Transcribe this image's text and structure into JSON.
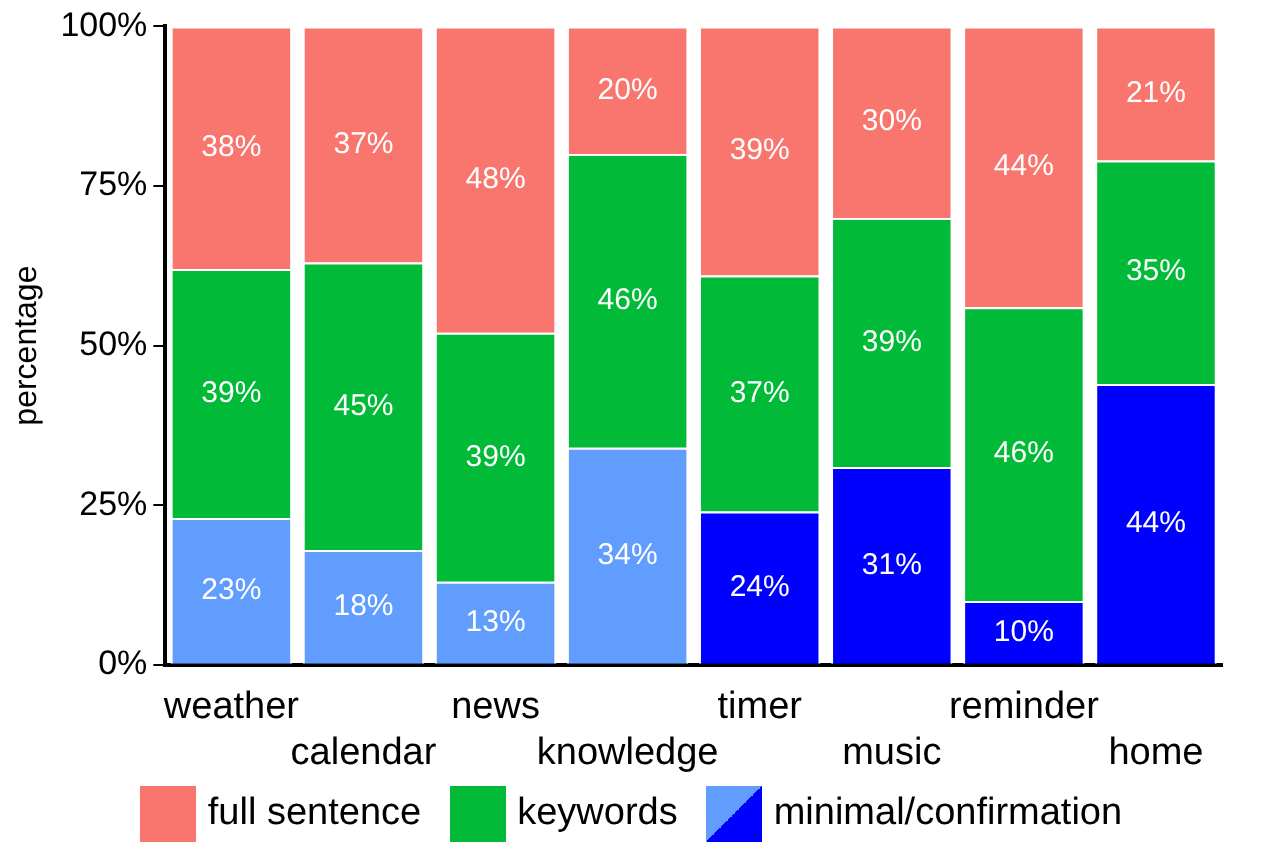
{
  "chart_data": {
    "type": "bar",
    "stacked": true,
    "ylabel": "percentage",
    "categories": [
      "weather",
      "calendar",
      "news",
      "knowledge",
      "timer",
      "music",
      "reminder",
      "home"
    ],
    "series": [
      {
        "name": "minimal/confirmation",
        "colors": [
          "#619cff",
          "#619cff",
          "#619cff",
          "#619cff",
          "#0000ff",
          "#0000ff",
          "#0000ff",
          "#0000ff"
        ],
        "values": [
          23,
          18,
          13,
          34,
          24,
          31,
          10,
          44
        ],
        "value_labels": [
          "23%",
          "18%",
          "13%",
          "34%",
          "24%",
          "31%",
          "10%",
          "44%"
        ]
      },
      {
        "name": "keywords",
        "color": "#00ba38",
        "values": [
          39,
          45,
          39,
          46,
          37,
          39,
          46,
          35
        ],
        "value_labels": [
          "39%",
          "45%",
          "39%",
          "46%",
          "37%",
          "39%",
          "46%",
          "35%"
        ]
      },
      {
        "name": "full sentence",
        "color": "#f8766d",
        "values": [
          38,
          37,
          48,
          20,
          39,
          30,
          44,
          21
        ],
        "value_labels": [
          "38%",
          "37%",
          "48%",
          "20%",
          "39%",
          "30%",
          "44%",
          "21%"
        ]
      }
    ],
    "ylim": [
      0,
      100
    ],
    "yticks": [
      {
        "value": 0,
        "label": "0%"
      },
      {
        "value": 25,
        "label": "25%"
      },
      {
        "value": 50,
        "label": "50%"
      },
      {
        "value": 75,
        "label": "75%"
      },
      {
        "value": 100,
        "label": "100%"
      }
    ],
    "grid": false,
    "legend": "bottom"
  }
}
